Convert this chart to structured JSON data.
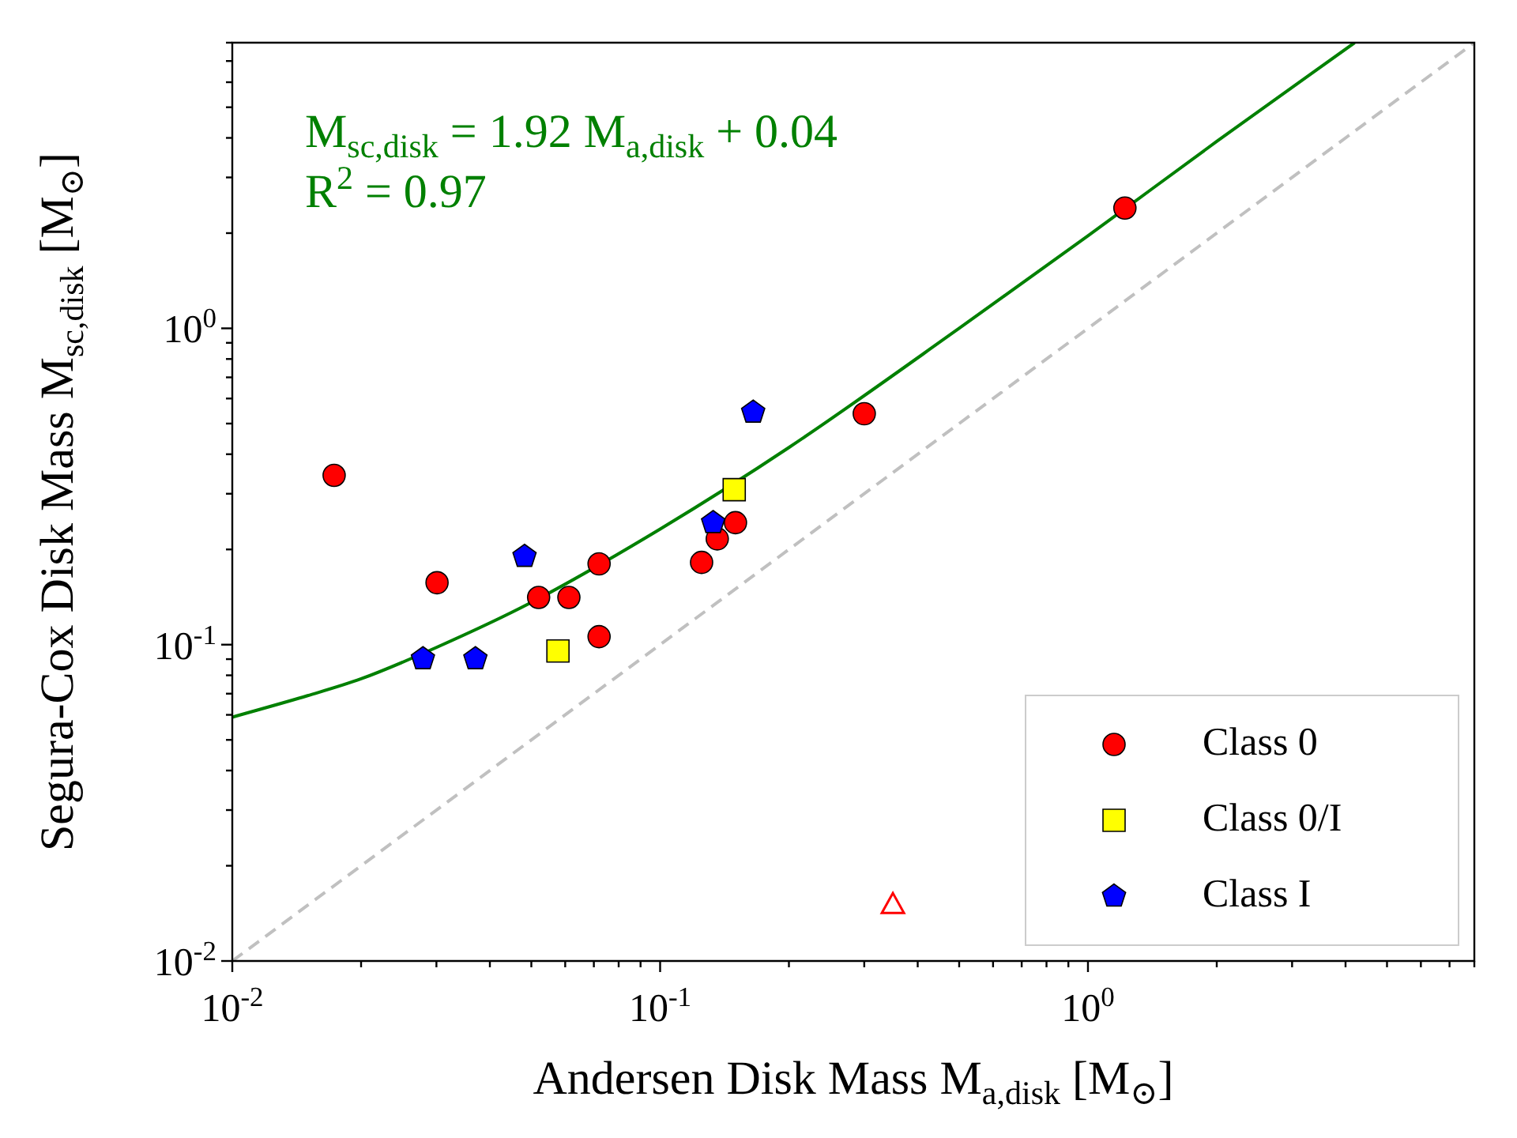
{
  "chart_data": {
    "type": "scatter",
    "xlabel": "Andersen Disk Mass M$_{a,disk}$ [M$_{⊙}$]",
    "ylabel": "Segura-Cox Disk Mass M$_{sc,disk}$ [M$_{⊙}$]",
    "log": "xy",
    "xlim": [
      0.01,
      8
    ],
    "ylim": [
      0.01,
      8
    ],
    "xticks": [
      {
        "value": 0.01,
        "label": "10$^{-2}$"
      },
      {
        "value": 0.02,
        "label": null
      },
      {
        "value": 0.03,
        "label": null
      },
      {
        "value": 0.04,
        "label": null
      },
      {
        "value": 0.05,
        "label": null
      },
      {
        "value": 0.06,
        "label": null
      },
      {
        "value": 0.07,
        "label": null
      },
      {
        "value": 0.08,
        "label": null
      },
      {
        "value": 0.09,
        "label": null
      },
      {
        "value": 0.1,
        "label": "10$^{-1}$"
      },
      {
        "value": 0.2,
        "label": null
      },
      {
        "value": 0.3,
        "label": null
      },
      {
        "value": 0.4,
        "label": null
      },
      {
        "value": 0.5,
        "label": null
      },
      {
        "value": 0.6,
        "label": null
      },
      {
        "value": 0.7,
        "label": null
      },
      {
        "value": 0.8,
        "label": null
      },
      {
        "value": 0.9,
        "label": null
      },
      {
        "value": 1,
        "label": "10$^{0}$"
      },
      {
        "value": 2,
        "label": null
      },
      {
        "value": 3,
        "label": null
      },
      {
        "value": 4,
        "label": null
      },
      {
        "value": 5,
        "label": null
      },
      {
        "value": 6,
        "label": null
      },
      {
        "value": 7,
        "label": null
      },
      {
        "value": 8,
        "label": null
      }
    ],
    "yticks": [
      {
        "value": 0.01,
        "label": "10$^{-2}$"
      },
      {
        "value": 0.02,
        "label": null
      },
      {
        "value": 0.03,
        "label": null
      },
      {
        "value": 0.04,
        "label": null
      },
      {
        "value": 0.05,
        "label": null
      },
      {
        "value": 0.06,
        "label": null
      },
      {
        "value": 0.07,
        "label": null
      },
      {
        "value": 0.08,
        "label": null
      },
      {
        "value": 0.09,
        "label": null
      },
      {
        "value": 0.1,
        "label": "10$^{-1}$"
      },
      {
        "value": 0.2,
        "label": null
      },
      {
        "value": 0.3,
        "label": null
      },
      {
        "value": 0.4,
        "label": null
      },
      {
        "value": 0.5,
        "label": null
      },
      {
        "value": 0.6,
        "label": null
      },
      {
        "value": 0.7,
        "label": null
      },
      {
        "value": 0.8,
        "label": null
      },
      {
        "value": 0.9,
        "label": null
      },
      {
        "value": 1,
        "label": "10$^{0}$"
      },
      {
        "value": 2,
        "label": null
      },
      {
        "value": 3,
        "label": null
      },
      {
        "value": 4,
        "label": null
      },
      {
        "value": 5,
        "label": null
      },
      {
        "value": 6,
        "label": null
      },
      {
        "value": 7,
        "label": null
      },
      {
        "value": 8,
        "label": null
      }
    ],
    "legend": "bottom right",
    "annotations": [
      "M$_{sc,disk}$ = 1.92 M$_{a,disk}$ + 0.04",
      "R$^{2}$ = 0.97"
    ],
    "series": [
      {
        "type": "line",
        "color": "#c0c0c0",
        "line_style": "dashed",
        "marker": "none",
        "x": [
          0.01,
          8
        ],
        "values": [
          0.01,
          8
        ]
      },
      {
        "type": "line",
        "color": "#008000",
        "line_style": "solid",
        "marker": "none",
        "x": [
          0.01,
          0.015,
          0.02,
          0.03,
          0.05,
          0.1,
          0.2,
          0.5,
          1,
          2,
          4.2
        ],
        "values": [
          0.059,
          0.069,
          0.078,
          0.098,
          0.136,
          0.232,
          0.42,
          1.0,
          1.96,
          3.9,
          8.0
        ]
      },
      {
        "name": "Class 0",
        "color": "#ff0000",
        "marker": "circle",
        "x": [
          0.0173,
          0.0301,
          0.052,
          0.0612,
          0.072,
          0.072,
          0.125,
          0.136,
          0.15,
          0.3,
          1.22
        ],
        "values": [
          0.343,
          0.157,
          0.141,
          0.141,
          0.18,
          0.106,
          0.182,
          0.216,
          0.243,
          0.537,
          2.4
        ]
      },
      {
        "name": "Class 0/I",
        "color": "#ffff00",
        "marker": "square",
        "x": [
          0.0577,
          0.149
        ],
        "values": [
          0.0955,
          0.309
        ]
      },
      {
        "name": "Class I",
        "color": "#0000ff",
        "x": [
          0.0279,
          0.037,
          0.0482,
          0.133,
          0.165
        ],
        "values": [
          0.0902,
          0.0902,
          0.19,
          0.243,
          0.543
        ]
      },
      {
        "color": "#ff0000",
        "marker": "triangle",
        "x": [
          0.35
        ],
        "values": [
          0.015
        ]
      }
    ]
  }
}
